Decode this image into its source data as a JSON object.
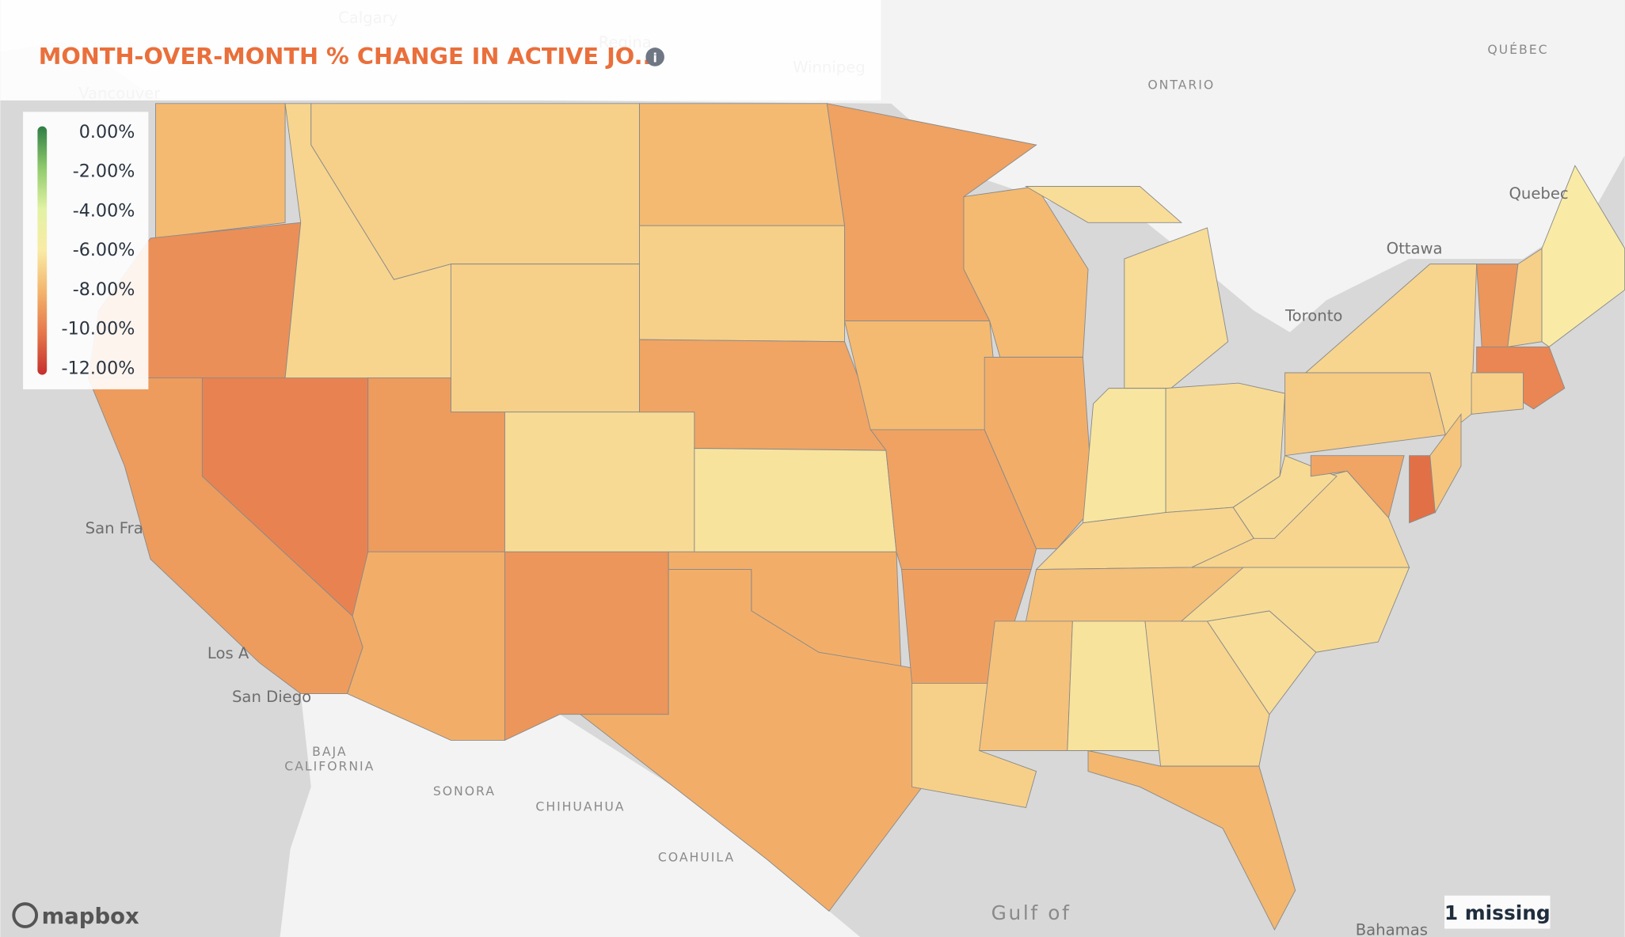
{
  "title": "MONTH-OVER-MONTH % CHANGE IN ACTIVE JO...",
  "legend": {
    "ticks": [
      {
        "value": 0,
        "label": "0.00%"
      },
      {
        "value": -2,
        "label": "-2.00%"
      },
      {
        "value": -4,
        "label": "-4.00%"
      },
      {
        "value": -6,
        "label": "-6.00%"
      },
      {
        "value": -8,
        "label": "-8.00%"
      },
      {
        "value": -10,
        "label": "-10.00%"
      },
      {
        "value": -12,
        "label": "-12.00%"
      }
    ],
    "colors": [
      "#2f7d45",
      "#8fca6c",
      "#e2f2a4",
      "#f9eba6",
      "#f3b46c",
      "#e5774a",
      "#c62f2e"
    ]
  },
  "regions": {
    "values": [
      -7.8,
      -9.2,
      -8.8,
      -9.6,
      -6.8,
      -7.0,
      -7.0,
      -8.8,
      -6.6,
      -8.2,
      -9.0,
      -7.8,
      -7.0,
      -8.5,
      -6.3,
      -8.2,
      -8.2,
      -8.6,
      -7.8,
      -8.6,
      -8.7,
      -7.0,
      -7.8,
      -8.2,
      -6.5,
      -6.2,
      -6.6,
      -6.8,
      -7.6,
      -7.5,
      -6.3,
      -6.8,
      -7.9,
      -6.5,
      -6.6,
      -6.8,
      -6.6,
      -7.2,
      -6.8,
      -8.5,
      -10.2,
      -7.4,
      -9.0,
      -7.0,
      -6.0,
      -9.5,
      -7.0
    ]
  },
  "place_labels": [
    "Calgary",
    "Regina",
    "Winnipeg",
    "ONTARIO",
    "QUÉBEC",
    "Vancouver",
    "Quebec",
    "Ottawa",
    "Toronto",
    "San Fra",
    "Los A",
    "San Diego",
    "BAJA",
    "CALIFORNIA",
    "SONORA",
    "CHIHUAHUA",
    "COAHUILA",
    "Gulf of",
    "Bahamas"
  ],
  "missing_note": "1 missing",
  "attribution": "mapbox"
}
